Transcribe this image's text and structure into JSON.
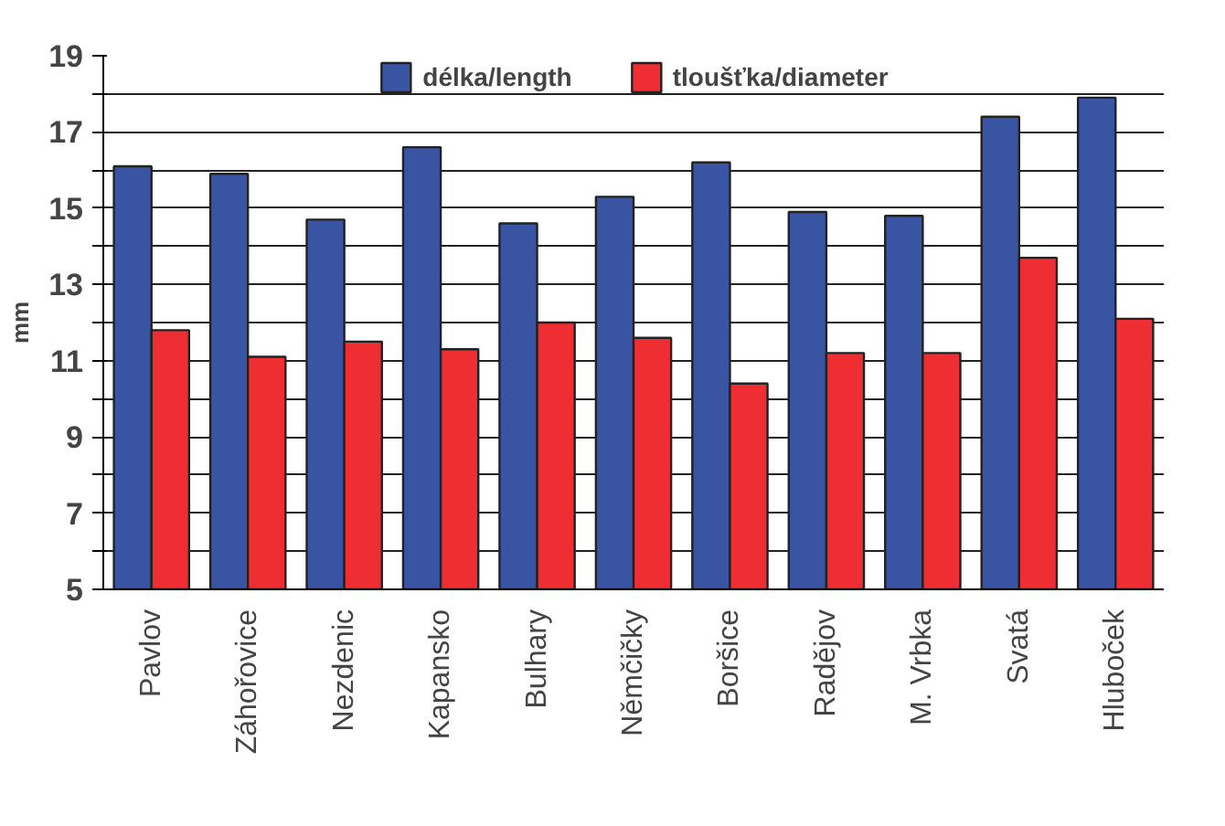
{
  "chart_data": {
    "type": "bar",
    "ylabel": "mm",
    "categories": [
      "Pavlov",
      "Záhořovice",
      "Nezdenic",
      "Kapansko",
      "Bulhary",
      "Němčičky",
      "Boršice",
      "Radějov",
      "M. Vrbka",
      "Svatá",
      "Hluboček"
    ],
    "series": [
      {
        "name": "délka/length",
        "color": "#3a54a4",
        "values": [
          16.1,
          15.9,
          14.7,
          16.6,
          14.6,
          15.3,
          16.2,
          14.9,
          14.8,
          17.4,
          17.9
        ]
      },
      {
        "name": "tloušťka/diameter",
        "color": "#ee2e32",
        "values": [
          11.8,
          11.1,
          11.5,
          11.3,
          12.0,
          11.6,
          10.4,
          11.2,
          11.2,
          13.7,
          12.1
        ]
      }
    ],
    "ylim": [
      5,
      19
    ],
    "yticks": [
      5,
      {
        "value": 6,
        "label": null
      },
      7,
      {
        "value": 8,
        "label": null
      },
      9,
      {
        "value": 10,
        "label": null
      },
      11,
      {
        "value": 12,
        "label": null
      },
      13,
      {
        "value": 14,
        "label": null
      },
      15,
      {
        "value": 16,
        "label": null
      },
      17,
      {
        "value": 18,
        "label": null
      },
      19
    ],
    "grid": "y",
    "legend": "top"
  }
}
